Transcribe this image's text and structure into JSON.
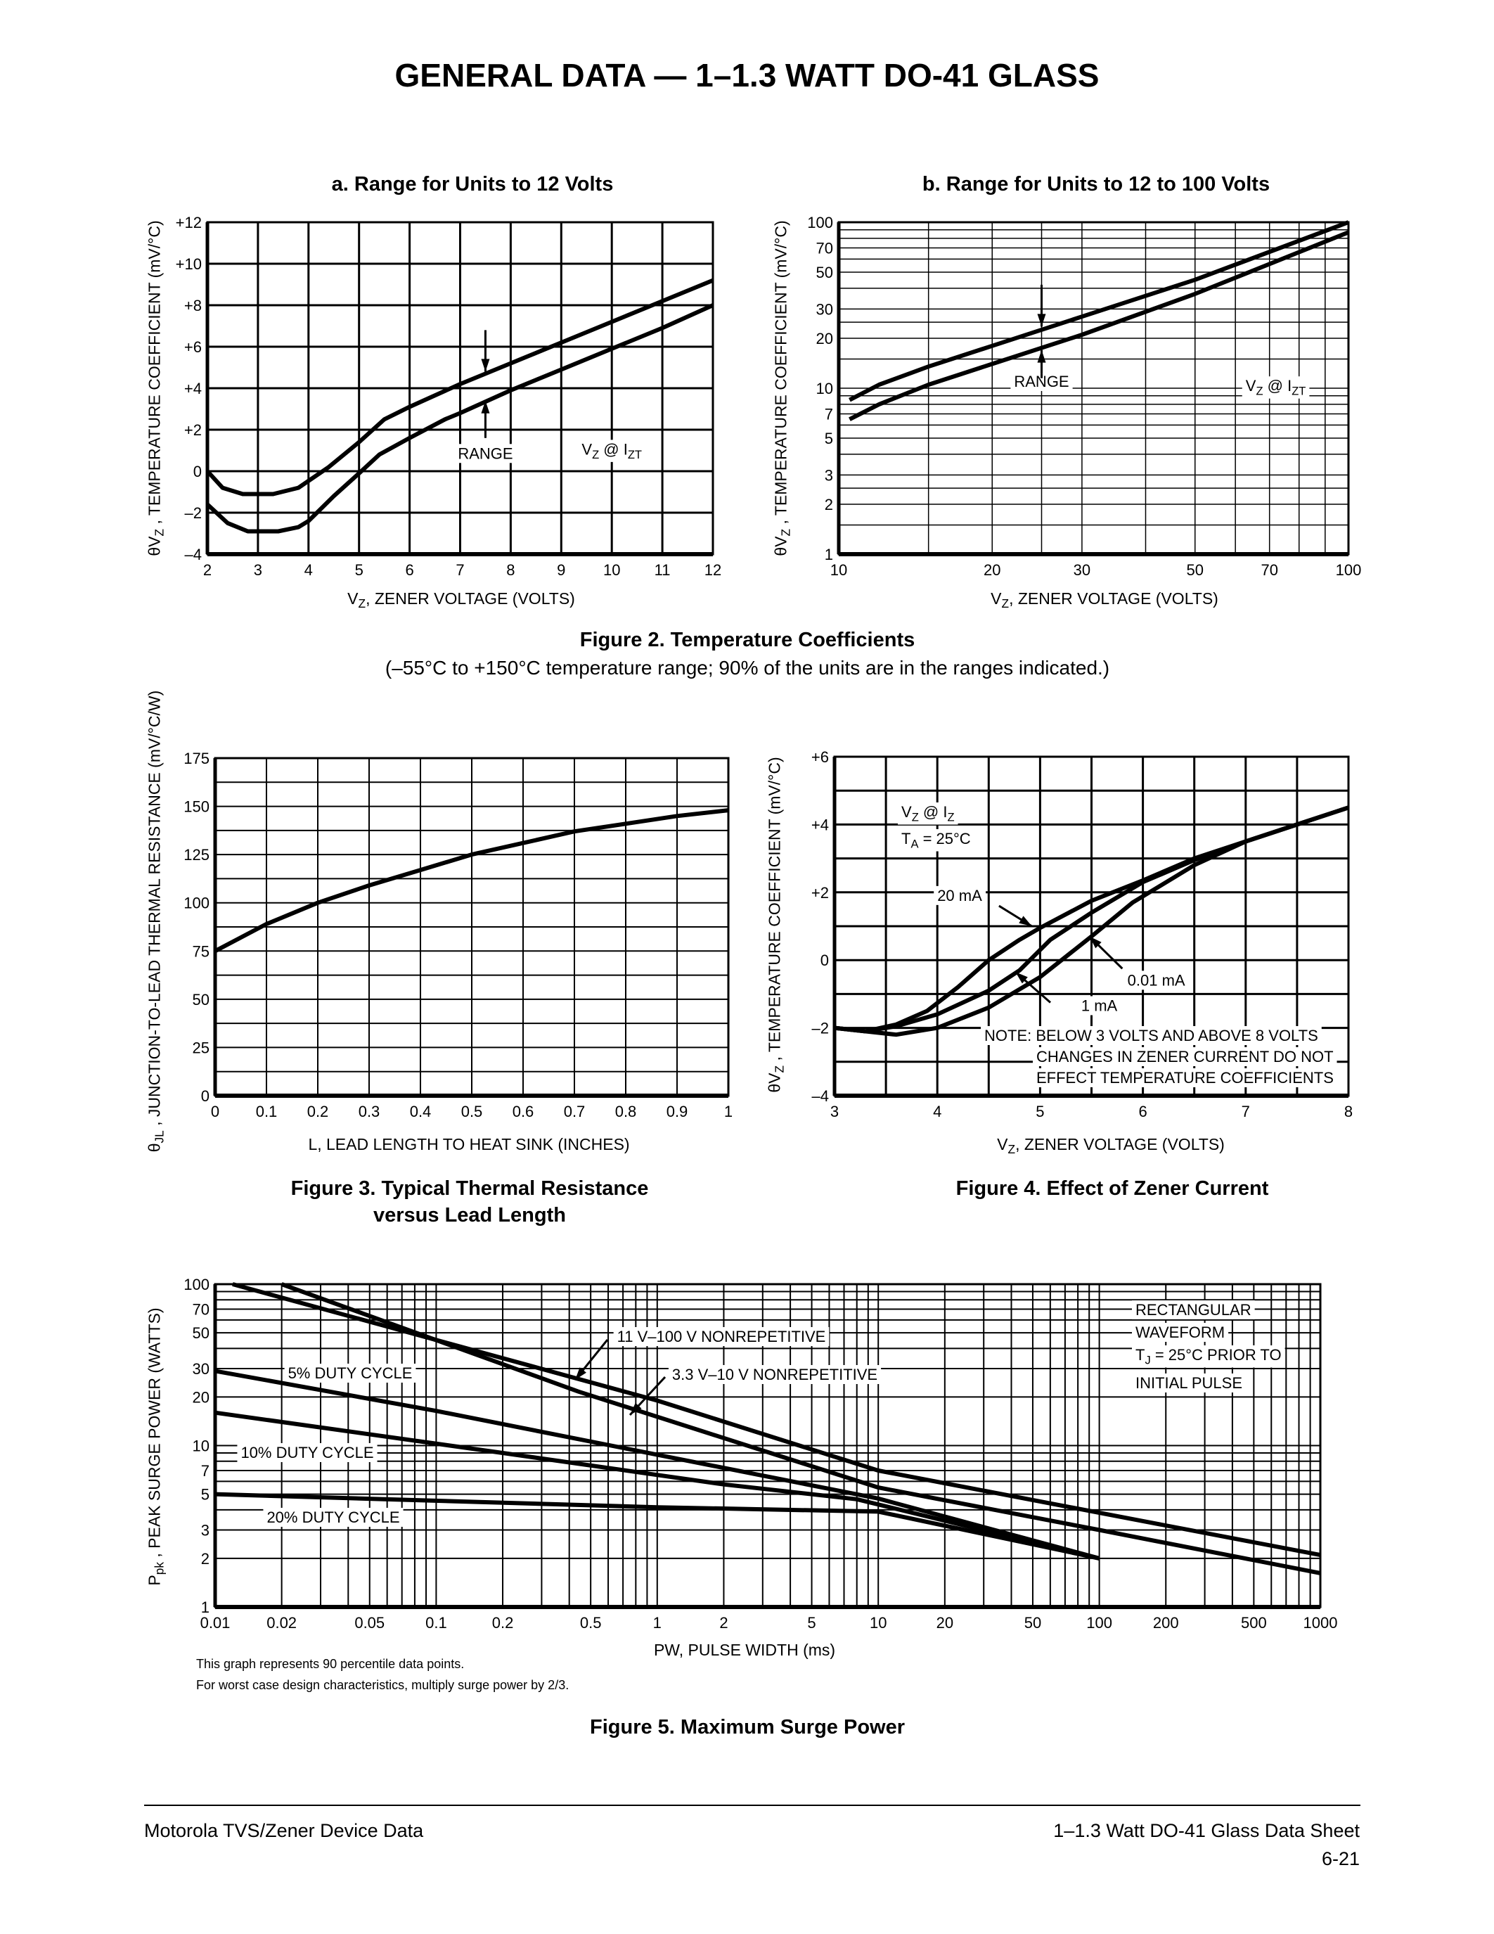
{
  "page": {
    "title": "GENERAL DATA — 1–1.3 WATT DO-41 GLASS"
  },
  "figure2": {
    "caption": "Figure 2. Temperature Coefficients",
    "note": "(–55°C to +150°C temperature range; 90% of the units are in the ranges indicated.)"
  },
  "figure3": {
    "caption_line1": "Figure 3. Typical Thermal Resistance",
    "caption_line2": "versus Lead Length"
  },
  "figure4": {
    "caption": "Figure 4. Effect of Zener Current"
  },
  "figure5": {
    "caption": "Figure 5. Maximum Surge Power",
    "notes": [
      "This graph represents 90 percentile data points.",
      "For worst case design characteristics, multiply surge power by 2/3."
    ]
  },
  "footer": {
    "left": "Motorola TVS/Zener Device Data",
    "right": "1–1.3 Watt DO-41 Glass Data Sheet",
    "page": "6-21"
  },
  "chart_data": [
    {
      "type": "line",
      "title": "a. Range for Units to 12 Volts",
      "xlabel": {
        "pre": "V",
        "sub": "Z",
        "post": ", ZENER VOLTAGE (VOLTS)"
      },
      "ylabel": {
        "pre": "θV",
        "sub": "Z",
        "post": " , TEMPERATURE COEFFICIENT (mV/°C)"
      },
      "xscale": "linear",
      "yscale": "linear",
      "xlim": [
        2,
        12
      ],
      "ylim": [
        -4,
        12
      ],
      "grid": true,
      "xticks": [
        2,
        3,
        4,
        5,
        6,
        7,
        8,
        9,
        10,
        11,
        12
      ],
      "xtick_labels": [
        "2",
        "3",
        "4",
        "5",
        "6",
        "7",
        "8",
        "9",
        "10",
        "11",
        "12"
      ],
      "yticks": [
        -4,
        -2,
        0,
        2,
        4,
        6,
        8,
        10,
        12
      ],
      "ytick_labels": [
        "–4",
        "–2",
        "0",
        "+2",
        "+4",
        "+6",
        "+8",
        "+10",
        "+12"
      ],
      "series": [
        {
          "x": [
            2,
            2.3,
            2.7,
            3.3,
            3.8,
            4.4,
            5,
            5.5,
            6,
            7,
            8,
            9,
            10,
            11,
            12
          ],
          "y": [
            0,
            -0.8,
            -1.1,
            -1.1,
            -0.8,
            0.2,
            1.4,
            2.5,
            3.1,
            4.2,
            5.2,
            6.2,
            7.2,
            8.2,
            9.2
          ]
        },
        {
          "x": [
            2,
            2.4,
            2.8,
            3.4,
            3.8,
            4,
            4.5,
            5,
            5.4,
            6,
            6.7,
            7,
            8,
            9,
            10,
            11,
            12
          ],
          "y": [
            -1.6,
            -2.5,
            -2.9,
            -2.9,
            -2.7,
            -2.4,
            -1.2,
            -0.1,
            0.8,
            1.6,
            2.5,
            2.8,
            3.9,
            4.9,
            5.9,
            6.9,
            8
          ]
        }
      ],
      "annotations": {
        "range": "RANGE",
        "condition": [
          {
            "t": "V"
          },
          {
            "t": "Z",
            "sub": true
          },
          {
            "t": " @ I"
          },
          {
            "t": "ZT",
            "sub": true
          }
        ]
      }
    },
    {
      "type": "line",
      "title": "b. Range for Units to 12 to 100 Volts",
      "xlabel": {
        "pre": "V",
        "sub": "Z",
        "post": ", ZENER VOLTAGE (VOLTS)"
      },
      "ylabel": {
        "pre": "θV",
        "sub": "Z",
        "post": " , TEMPERATURE COEFFICIENT (mV/°C)"
      },
      "xscale": "log",
      "yscale": "log",
      "xlim": [
        10,
        100
      ],
      "ylim": [
        1,
        100
      ],
      "grid": true,
      "xticks": [
        10,
        20,
        30,
        50,
        70,
        100
      ],
      "xtick_labels": [
        "10",
        "20",
        "30",
        "50",
        "70",
        "100"
      ],
      "yticks": [
        1,
        2,
        3,
        5,
        7,
        10,
        20,
        30,
        50,
        70,
        100
      ],
      "ytick_labels": [
        "1",
        "2",
        "3",
        "5",
        "7",
        "10",
        "20",
        "30",
        "50",
        "70",
        "100"
      ],
      "series": [
        {
          "x": [
            10.5,
            12,
            15,
            20,
            30,
            50,
            100
          ],
          "y": [
            8.5,
            10.5,
            13.5,
            18,
            27,
            45,
            100
          ]
        },
        {
          "x": [
            10.5,
            12,
            15,
            20,
            30,
            50,
            100
          ],
          "y": [
            6.5,
            8,
            10.5,
            14,
            21,
            37,
            87
          ]
        }
      ],
      "annotations": {
        "range": "RANGE",
        "condition": [
          {
            "t": "V"
          },
          {
            "t": "Z",
            "sub": true
          },
          {
            "t": " @ I"
          },
          {
            "t": "ZT",
            "sub": true
          }
        ]
      }
    },
    {
      "type": "line",
      "title": "",
      "xlabel": {
        "pre": "L, LEAD LENGTH TO HEAT SINK (INCHES)",
        "sub": "",
        "post": ""
      },
      "ylabel": {
        "pre": "θ",
        "sub": "JL",
        "post": " , JUNCTION-TO-LEAD THERMAL RESISTANCE (mV/°C/W)"
      },
      "xscale": "linear",
      "yscale": "linear",
      "xlim": [
        0,
        1
      ],
      "ylim": [
        0,
        175
      ],
      "grid": true,
      "xticks": [
        0,
        0.1,
        0.2,
        0.3,
        0.4,
        0.5,
        0.6,
        0.7,
        0.8,
        0.9,
        1
      ],
      "xtick_labels": [
        "0",
        "0.1",
        "0.2",
        "0.3",
        "0.4",
        "0.5",
        "0.6",
        "0.7",
        "0.8",
        "0.9",
        "1"
      ],
      "yticks": [
        0,
        25,
        50,
        75,
        100,
        125,
        150,
        175
      ],
      "ytick_labels": [
        "0",
        "25",
        "50",
        "75",
        "100",
        "125",
        "150",
        "175"
      ],
      "series": [
        {
          "x": [
            0,
            0.1,
            0.2,
            0.3,
            0.4,
            0.5,
            0.6,
            0.7,
            0.8,
            0.9,
            1
          ],
          "y": [
            75,
            89,
            100,
            109,
            117,
            125,
            131,
            137,
            141,
            145,
            148
          ]
        }
      ]
    },
    {
      "type": "line",
      "title": "",
      "xlabel": {
        "pre": "V",
        "sub": "Z",
        "post": ", ZENER VOLTAGE (VOLTS)"
      },
      "ylabel": {
        "pre": "θV",
        "sub": "Z",
        "post": " , TEMPERATURE COEFFICIENT (mV/°C)"
      },
      "xscale": "linear",
      "yscale": "linear",
      "xlim": [
        3,
        8
      ],
      "ylim": [
        -4,
        6
      ],
      "grid": true,
      "xticks": [
        3,
        4,
        5,
        6,
        7,
        8
      ],
      "xtick_labels": [
        "3",
        "4",
        "5",
        "6",
        "7",
        "8"
      ],
      "yticks": [
        -4,
        -2,
        0,
        2,
        4,
        6
      ],
      "ytick_labels": [
        "–4",
        "–2",
        "0",
        "+2",
        "+4",
        "+6"
      ],
      "series": [
        {
          "name": "20 mA",
          "x": [
            3,
            3.3,
            3.6,
            3.9,
            4.2,
            4.5,
            4.8,
            5,
            5.5,
            6,
            6.5,
            7,
            7.5,
            8
          ],
          "y": [
            -2,
            -2.1,
            -1.9,
            -1.5,
            -0.8,
            0,
            0.6,
            0.95,
            1.75,
            2.35,
            3,
            3.5,
            4,
            4.5
          ]
        },
        {
          "name": "1 mA",
          "x": [
            3,
            3.3,
            3.6,
            4,
            4.5,
            4.8,
            5.1,
            5.5,
            6,
            6.5,
            7,
            7.5,
            8
          ],
          "y": [
            -2,
            -2.1,
            -1.95,
            -1.6,
            -0.9,
            -0.3,
            0.6,
            1.4,
            2.3,
            2.95,
            3.5,
            4,
            4.5
          ]
        },
        {
          "name": "0.01 mA",
          "x": [
            3,
            3.6,
            4,
            4.5,
            5,
            5.5,
            5.9,
            6.5,
            7,
            7.5,
            8
          ],
          "y": [
            -2,
            -2.2,
            -2,
            -1.4,
            -0.5,
            0.7,
            1.7,
            2.8,
            3.5,
            4,
            4.5
          ]
        }
      ],
      "annotations": {
        "condition_line1": [
          {
            "t": "V"
          },
          {
            "t": "Z",
            "sub": true
          },
          {
            "t": " @ I"
          },
          {
            "t": "Z",
            "sub": true
          }
        ],
        "condition_line2": [
          {
            "t": "T"
          },
          {
            "t": "A",
            "sub": true
          },
          {
            "t": " = 25°C"
          }
        ],
        "note": [
          "NOTE: BELOW 3 VOLTS AND ABOVE 8 VOLTS",
          "CHANGES IN ZENER CURRENT DO NOT",
          "EFFECT TEMPERATURE COEFFICIENTS"
        ]
      }
    },
    {
      "type": "line",
      "title": "",
      "xlabel": {
        "pre": "PW, PULSE WIDTH (ms)",
        "sub": "",
        "post": ""
      },
      "ylabel": {
        "pre": "P",
        "sub": "pk",
        "post": " , PEAK SURGE POWER (WATTS)"
      },
      "xscale": "log",
      "yscale": "log",
      "xlim": [
        0.01,
        1000
      ],
      "ylim": [
        1,
        100
      ],
      "grid": true,
      "xticks": [
        0.01,
        0.02,
        0.05,
        0.1,
        0.2,
        0.5,
        1,
        2,
        5,
        10,
        20,
        50,
        100,
        200,
        500,
        1000
      ],
      "xtick_labels": [
        "0.01",
        "0.02",
        "0.05",
        "0.1",
        "0.2",
        "0.5",
        "1",
        "2",
        "5",
        "10",
        "20",
        "50",
        "100",
        "200",
        "500",
        "1000"
      ],
      "yticks": [
        1,
        2,
        3,
        5,
        7,
        10,
        20,
        30,
        50,
        70,
        100
      ],
      "ytick_labels": [
        "1",
        "2",
        "3",
        "5",
        "7",
        "10",
        "20",
        "30",
        "50",
        "70",
        "100"
      ],
      "series": [
        {
          "name": "11 V–100 V NONREPETITIVE",
          "x": [
            0.012,
            1,
            10,
            1000
          ],
          "y": [
            100,
            19,
            7,
            2.1
          ]
        },
        {
          "name": "3.3 V–10 V NONREPETITIVE",
          "x": [
            0.02,
            0.44,
            10,
            100,
            1000
          ],
          "y": [
            100,
            21.6,
            5.5,
            3,
            1.62
          ]
        },
        {
          "name": "5% DUTY CYCLE",
          "x": [
            0.01,
            0.1,
            10,
            100
          ],
          "y": [
            29,
            16.4,
            4.7,
            2
          ]
        },
        {
          "name": "10% DUTY CYCLE",
          "x": [
            0.01,
            0.2,
            2,
            8,
            100
          ],
          "y": [
            16,
            9,
            5.75,
            4.65,
            2
          ]
        },
        {
          "name": "20% DUTY CYCLE",
          "x": [
            0.01,
            1,
            10,
            100
          ],
          "y": [
            5,
            4.15,
            3.9,
            2
          ]
        }
      ],
      "annotations": {
        "waveform": [
          [
            {
              "t": "RECTANGULAR"
            }
          ],
          [
            {
              "t": "WAVEFORM"
            }
          ],
          [
            {
              "t": "T"
            },
            {
              "t": "J",
              "sub": true
            },
            {
              "t": " = 25°C PRIOR TO"
            }
          ],
          [
            {
              "t": "INITIAL PULSE"
            }
          ]
        ]
      }
    }
  ]
}
